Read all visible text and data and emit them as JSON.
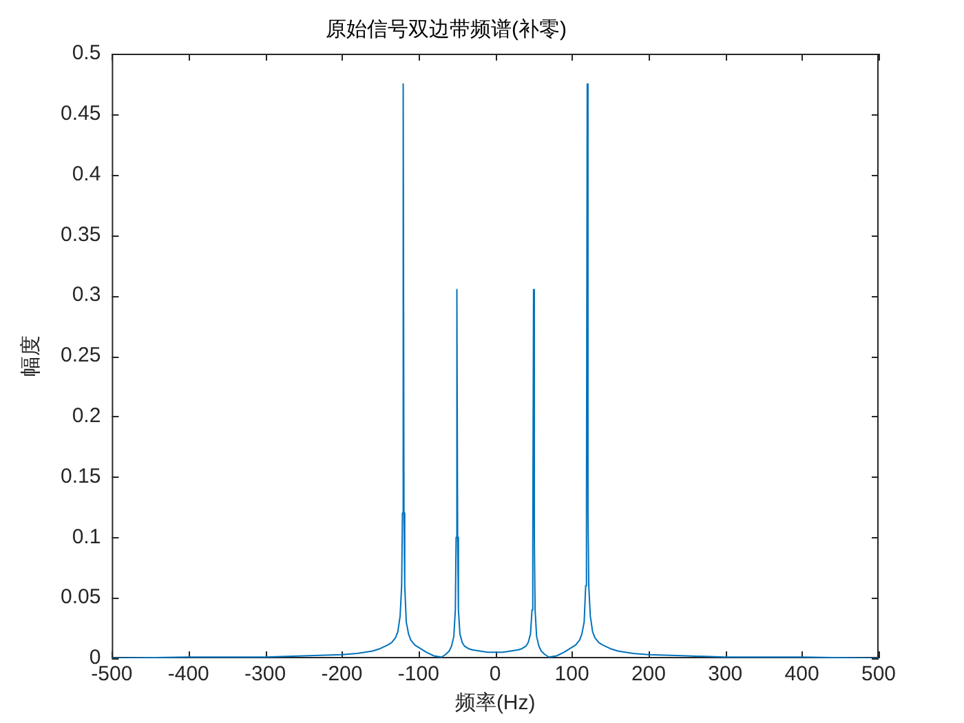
{
  "chart_data": {
    "type": "line",
    "title": "原始信号双边带频谱(补零)",
    "xlabel": "频率(Hz)",
    "ylabel": "幅度",
    "x": [
      -500,
      -400,
      -300,
      -250,
      -200,
      -180,
      -160,
      -150,
      -140,
      -135,
      -130,
      -127,
      -124,
      -122,
      -121,
      -120,
      -119,
      -118,
      -116,
      -113,
      -110,
      -105,
      -100,
      -90,
      -80,
      -70,
      -65,
      -60,
      -57,
      -54,
      -52,
      -51,
      -50,
      -49,
      -48,
      -46,
      -43,
      -40,
      -35,
      -30,
      -20,
      -10,
      0,
      10,
      20,
      30,
      35,
      40,
      43,
      46,
      48,
      49,
      50,
      51,
      52,
      54,
      57,
      60,
      65,
      70,
      80,
      90,
      100,
      105,
      110,
      113,
      116,
      118,
      119,
      120,
      121,
      122,
      124,
      127,
      130,
      135,
      140,
      150,
      160,
      180,
      200,
      250,
      300,
      400,
      500
    ],
    "series": [
      {
        "color": "#0072bd",
        "values": [
          0,
          0.001,
          0.001,
          0.002,
          0.003,
          0.004,
          0.006,
          0.008,
          0.011,
          0.013,
          0.017,
          0.022,
          0.035,
          0.06,
          0.12,
          0.475,
          0.12,
          0.06,
          0.03,
          0.02,
          0.015,
          0.011,
          0.009,
          0.005,
          0.002,
          0.001,
          0.003,
          0.006,
          0.01,
          0.018,
          0.04,
          0.1,
          0.305,
          0.1,
          0.04,
          0.02,
          0.013,
          0.01,
          0.008,
          0.007,
          0.006,
          0.005,
          0.005,
          0.005,
          0.006,
          0.007,
          0.008,
          0.01,
          0.013,
          0.02,
          0.04,
          0.1,
          0.305,
          0.1,
          0.04,
          0.018,
          0.01,
          0.006,
          0.003,
          0.001,
          0.002,
          0.005,
          0.009,
          0.011,
          0.015,
          0.02,
          0.03,
          0.06,
          0.12,
          0.475,
          0.12,
          0.06,
          0.035,
          0.022,
          0.017,
          0.013,
          0.011,
          0.008,
          0.006,
          0.004,
          0.003,
          0.002,
          0.001,
          0.001,
          0
        ]
      }
    ],
    "xlim": [
      -500,
      500
    ],
    "xticks": [
      -500,
      -400,
      -300,
      -200,
      -100,
      0,
      100,
      200,
      300,
      400,
      500
    ],
    "ylim": [
      0,
      0.5
    ],
    "yticks": [
      0,
      0.05,
      0.1,
      0.15,
      0.2,
      0.25,
      0.3,
      0.35,
      0.4,
      0.45,
      0.5
    ],
    "marker": "none",
    "line_style": "solid",
    "grid": false,
    "legend": false
  }
}
